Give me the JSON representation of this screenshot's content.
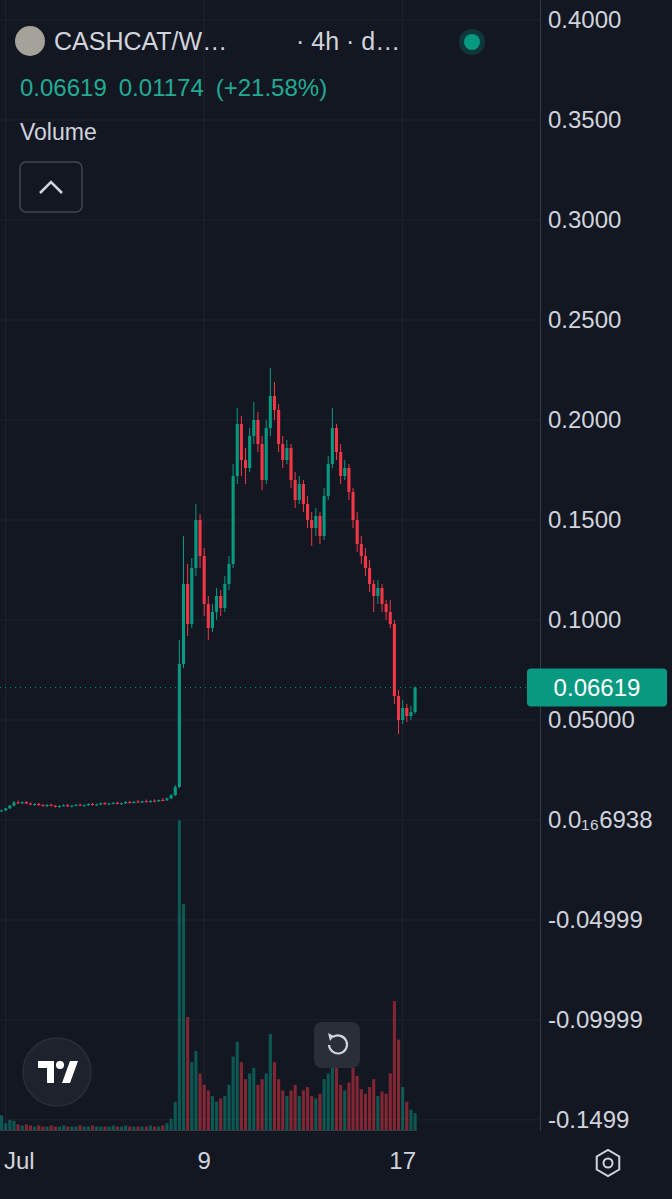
{
  "chart_data": {
    "type": "candlestick",
    "title": "CASHCAT/W…",
    "subtitle": "· 4h · d…",
    "quote": [
      {
        "value": 0.06619,
        "label": "0.06619"
      },
      {
        "value": 0.01174,
        "label": "0.01174"
      },
      {
        "value": 21.58,
        "label": "(+21.58%)"
      }
    ],
    "categories": [
      null,
      "Jul",
      null,
      null,
      null,
      null,
      null,
      null,
      null,
      null,
      null,
      null,
      null,
      null,
      null,
      null,
      null,
      null,
      null,
      null,
      null,
      null,
      null,
      null,
      null,
      null,
      null,
      null,
      null,
      null,
      null,
      null,
      null,
      null,
      null,
      null,
      null,
      null,
      null,
      null,
      null,
      null,
      null,
      null,
      null,
      null,
      null,
      null,
      null,
      "9",
      null,
      null,
      null,
      null,
      null,
      null,
      null,
      null,
      null,
      null,
      null,
      null,
      null,
      null,
      null,
      null,
      null,
      null,
      null,
      null,
      null,
      null,
      null,
      null,
      null,
      null,
      null,
      null,
      null,
      null,
      null,
      null,
      null,
      null,
      null,
      null,
      null,
      null,
      null,
      null,
      null,
      null,
      null,
      null,
      null,
      null,
      null,
      "17",
      null,
      null,
      null
    ],
    "series": [
      {
        "type": "candlestick",
        "colors": [
          "#089981",
          "#f23645"
        ],
        "open": [
          0.0045,
          0.0048,
          0.0058,
          0.0072,
          0.0088,
          0.0084,
          0.009,
          0.0082,
          0.0078,
          0.008,
          0.0074,
          0.007,
          0.0076,
          0.0072,
          0.0066,
          0.007,
          0.0074,
          0.0068,
          0.0072,
          0.0076,
          0.0072,
          0.0074,
          0.008,
          0.0076,
          0.0078,
          0.0084,
          0.008,
          0.0082,
          0.0086,
          0.008,
          0.0084,
          0.009,
          0.0086,
          0.0092,
          0.0088,
          0.0094,
          0.009,
          0.0096,
          0.0094,
          0.01,
          0.0098,
          0.0108,
          0.0124,
          0.0165,
          0.078,
          0.118,
          0.098,
          0.126,
          0.15,
          0.132,
          0.108,
          0.096,
          0.104,
          0.112,
          0.106,
          0.118,
          0.128,
          0.172,
          0.198,
          0.18,
          0.176,
          0.192,
          0.2,
          0.188,
          0.17,
          0.196,
          0.212,
          0.205,
          0.188,
          0.18,
          0.186,
          0.17,
          0.16,
          0.168,
          0.158,
          0.15,
          0.146,
          0.152,
          0.142,
          0.162,
          0.178,
          0.196,
          0.184,
          0.172,
          0.176,
          0.164,
          0.15,
          0.138,
          0.132,
          0.126,
          0.118,
          0.112,
          0.116,
          0.108,
          0.104,
          0.098,
          0.062,
          0.05,
          0.056,
          0.052,
          0.054
        ],
        "high": [
          0.0052,
          0.006,
          0.0075,
          0.0095,
          0.0098,
          0.0092,
          0.0094,
          0.0088,
          0.0084,
          0.0086,
          0.008,
          0.0078,
          0.0082,
          0.0076,
          0.0074,
          0.0078,
          0.008,
          0.0074,
          0.008,
          0.0082,
          0.0078,
          0.0084,
          0.0086,
          0.0082,
          0.0088,
          0.009,
          0.0086,
          0.009,
          0.0092,
          0.0088,
          0.0094,
          0.0096,
          0.0094,
          0.01,
          0.0096,
          0.0102,
          0.0098,
          0.0104,
          0.0102,
          0.011,
          0.0112,
          0.013,
          0.0175,
          0.09,
          0.142,
          0.128,
          0.131,
          0.158,
          0.153,
          0.136,
          0.112,
          0.108,
          0.116,
          0.115,
          0.122,
          0.132,
          0.178,
          0.206,
          0.202,
          0.186,
          0.196,
          0.209,
          0.204,
          0.192,
          0.2,
          0.226,
          0.219,
          0.208,
          0.192,
          0.19,
          0.188,
          0.174,
          0.172,
          0.17,
          0.162,
          0.154,
          0.156,
          0.154,
          0.166,
          0.182,
          0.206,
          0.198,
          0.188,
          0.18,
          0.178,
          0.166,
          0.154,
          0.142,
          0.136,
          0.13,
          0.12,
          0.12,
          0.118,
          0.11,
          0.11,
          0.1,
          0.065,
          0.06,
          0.058,
          0.057,
          0.0668
        ],
        "low": [
          0.004,
          0.0046,
          0.0055,
          0.0068,
          0.008,
          0.0078,
          0.008,
          0.0074,
          0.007,
          0.0072,
          0.0066,
          0.0064,
          0.0068,
          0.0062,
          0.006,
          0.0066,
          0.0066,
          0.0062,
          0.0068,
          0.007,
          0.0066,
          0.007,
          0.0072,
          0.007,
          0.0074,
          0.0076,
          0.0074,
          0.0078,
          0.0078,
          0.0076,
          0.008,
          0.0082,
          0.0082,
          0.0086,
          0.0084,
          0.0088,
          0.0086,
          0.009,
          0.009,
          0.0094,
          0.0096,
          0.0104,
          0.012,
          0.016,
          0.076,
          0.092,
          0.096,
          0.122,
          0.126,
          0.102,
          0.09,
          0.094,
          0.1,
          0.102,
          0.104,
          0.115,
          0.126,
          0.168,
          0.172,
          0.168,
          0.174,
          0.188,
          0.184,
          0.165,
          0.168,
          0.192,
          0.2,
          0.184,
          0.176,
          0.178,
          0.166,
          0.156,
          0.158,
          0.154,
          0.146,
          0.137,
          0.142,
          0.138,
          0.14,
          0.16,
          0.176,
          0.18,
          0.168,
          0.17,
          0.16,
          0.146,
          0.134,
          0.128,
          0.122,
          0.114,
          0.104,
          0.108,
          0.104,
          0.1,
          0.096,
          0.058,
          0.043,
          0.048,
          0.049,
          0.05,
          0.053
        ],
        "close": [
          0.0048,
          0.0058,
          0.0072,
          0.0088,
          0.0084,
          0.009,
          0.0082,
          0.0078,
          0.008,
          0.0074,
          0.007,
          0.0076,
          0.0072,
          0.0066,
          0.007,
          0.0074,
          0.0068,
          0.0072,
          0.0076,
          0.0072,
          0.0074,
          0.008,
          0.0076,
          0.0078,
          0.0084,
          0.008,
          0.0082,
          0.0086,
          0.008,
          0.0084,
          0.009,
          0.0086,
          0.0092,
          0.0088,
          0.0094,
          0.009,
          0.0096,
          0.0094,
          0.01,
          0.0098,
          0.0108,
          0.0124,
          0.0165,
          0.078,
          0.118,
          0.098,
          0.126,
          0.15,
          0.132,
          0.108,
          0.096,
          0.104,
          0.112,
          0.106,
          0.118,
          0.128,
          0.172,
          0.198,
          0.18,
          0.176,
          0.192,
          0.2,
          0.188,
          0.17,
          0.196,
          0.212,
          0.205,
          0.188,
          0.18,
          0.186,
          0.17,
          0.16,
          0.168,
          0.158,
          0.15,
          0.146,
          0.152,
          0.142,
          0.162,
          0.178,
          0.196,
          0.184,
          0.172,
          0.176,
          0.164,
          0.15,
          0.138,
          0.132,
          0.126,
          0.118,
          0.112,
          0.116,
          0.108,
          0.104,
          0.098,
          0.062,
          0.05,
          0.056,
          0.052,
          0.054,
          0.06619
        ]
      },
      {
        "name": "Volume",
        "type": "bar",
        "axis": "y2",
        "values": [
          1.3,
          0.6,
          0.9,
          0.8,
          0.5,
          0.4,
          0.5,
          0.4,
          0.3,
          0.4,
          0.3,
          0.3,
          0.4,
          0.3,
          0.3,
          0.4,
          0.3,
          0.3,
          0.3,
          0.4,
          0.3,
          0.3,
          0.4,
          0.3,
          0.3,
          0.3,
          0.3,
          0.4,
          0.3,
          0.3,
          0.4,
          0.3,
          0.3,
          0.3,
          0.3,
          0.3,
          0.4,
          0.3,
          0.3,
          0.4,
          0.6,
          1.0,
          2.5,
          27.4,
          20,
          10,
          6,
          7,
          5,
          4,
          3.5,
          3,
          2.5,
          2.8,
          3,
          4,
          6.5,
          7.8,
          6,
          4.5,
          5,
          5.5,
          4,
          4.5,
          5,
          8.5,
          6,
          4.5,
          3.5,
          3,
          3.5,
          4,
          3,
          3.5,
          3.8,
          3,
          2.8,
          3.2,
          4.5,
          5,
          8,
          6.5,
          4,
          3.5,
          4.2,
          5.5,
          4.8,
          3.6,
          3.2,
          3.8,
          4.5,
          3,
          3.4,
          3.2,
          5,
          11.4,
          8,
          3.8,
          2.5,
          1.8,
          1.5
        ]
      }
    ],
    "ylim": [
      -0.155,
      0.41
    ],
    "yticks": [
      {
        "value": 0.4,
        "label": "0.4000"
      },
      {
        "value": 0.35,
        "label": "0.3500"
      },
      {
        "value": 0.3,
        "label": "0.3000"
      },
      {
        "value": 0.25,
        "label": "0.2500"
      },
      {
        "value": 0.2,
        "label": "0.2000"
      },
      {
        "value": 0.15,
        "label": "0.1500"
      },
      {
        "value": 0.1,
        "label": "0.1000"
      },
      {
        "value": 0.05,
        "label": "0.05000"
      },
      {
        "value": 6.938e-17,
        "label": "0.0₁₆6938"
      },
      -0.04999,
      -0.09999,
      -0.1499
    ],
    "y2lim": [
      0,
      100
    ],
    "y2ticks": [],
    "price_line": {
      "value": 0.06619,
      "label": "0.06619",
      "color": "#089981"
    },
    "grid": true
  }
}
